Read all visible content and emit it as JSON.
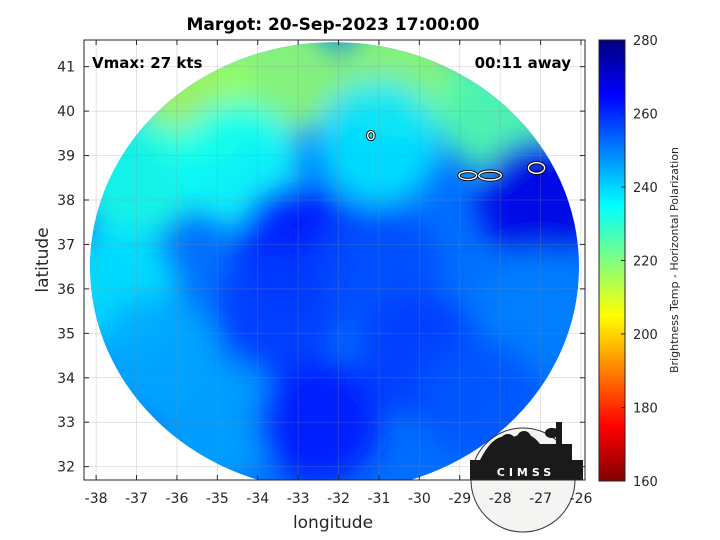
{
  "chart_data": {
    "type": "heatmap",
    "title": "Margot: 20-Sep-2023 17:00:00",
    "xlabel": "longitude",
    "ylabel": "latitude",
    "xlim": [
      -38.3,
      -25.9
    ],
    "ylim": [
      31.7,
      41.6
    ],
    "x_ticks": [
      -38,
      -37,
      -36,
      -35,
      -34,
      -33,
      -32,
      -31,
      -30,
      -29,
      -28,
      -27,
      -26
    ],
    "y_ticks": [
      32,
      33,
      34,
      35,
      36,
      37,
      38,
      39,
      40,
      41
    ],
    "grid": true,
    "annotations": {
      "vmax": "Vmax: 27 kts",
      "time_offset": "00:11 away"
    },
    "colorbar": {
      "label": "Brightness Temp - Horizontal Polarization",
      "range": [
        160,
        280
      ],
      "ticks": [
        160,
        180,
        200,
        220,
        240,
        260,
        280
      ],
      "colormap": "jet",
      "colors": [
        "#800000",
        "#ff0000",
        "#ff8000",
        "#ffff00",
        "#80ff80",
        "#00ffff",
        "#0080ff",
        "#0000ff",
        "#000080"
      ]
    },
    "swath": {
      "center": [
        -32.1,
        36.5
      ],
      "radius_lon": 6.05,
      "radius_lat": 5.05
    },
    "regions": [
      {
        "lon": -35.5,
        "lat": 40.2,
        "value": 215
      },
      {
        "lon": -33.5,
        "lat": 40.8,
        "value": 218
      },
      {
        "lon": -30.5,
        "lat": 40.8,
        "value": 218
      },
      {
        "lon": -28.0,
        "lat": 40.0,
        "value": 225
      },
      {
        "lon": -37.0,
        "lat": 38.5,
        "value": 232
      },
      {
        "lon": -34.5,
        "lat": 38.8,
        "value": 234
      },
      {
        "lon": -31.0,
        "lat": 39.3,
        "value": 238
      },
      {
        "lon": -37.5,
        "lat": 36.0,
        "value": 238
      },
      {
        "lon": -36.5,
        "lat": 34.5,
        "value": 245
      },
      {
        "lon": -35.0,
        "lat": 33.0,
        "value": 246
      },
      {
        "lon": -33.0,
        "lat": 37.0,
        "value": 262
      },
      {
        "lon": -33.5,
        "lat": 35.5,
        "value": 258
      },
      {
        "lon": -31.0,
        "lat": 36.5,
        "value": 256
      },
      {
        "lon": -30.0,
        "lat": 34.5,
        "value": 258
      },
      {
        "lon": -32.5,
        "lat": 33.0,
        "value": 262
      },
      {
        "lon": -27.0,
        "lat": 38.0,
        "value": 268
      },
      {
        "lon": -27.0,
        "lat": 35.5,
        "value": 250
      },
      {
        "lon": -28.5,
        "lat": 33.5,
        "value": 255
      }
    ],
    "contours": [
      {
        "lon": -31.2,
        "lat": 39.45,
        "rx": 0.08,
        "ry": 0.09
      },
      {
        "lon": -28.8,
        "lat": 38.55,
        "rx": 0.22,
        "ry": 0.09
      },
      {
        "lon": -28.25,
        "lat": 38.55,
        "rx": 0.28,
        "ry": 0.1
      },
      {
        "lon": -27.1,
        "lat": 38.72,
        "rx": 0.2,
        "ry": 0.12
      }
    ]
  },
  "logo": {
    "text": "CIMSS"
  }
}
